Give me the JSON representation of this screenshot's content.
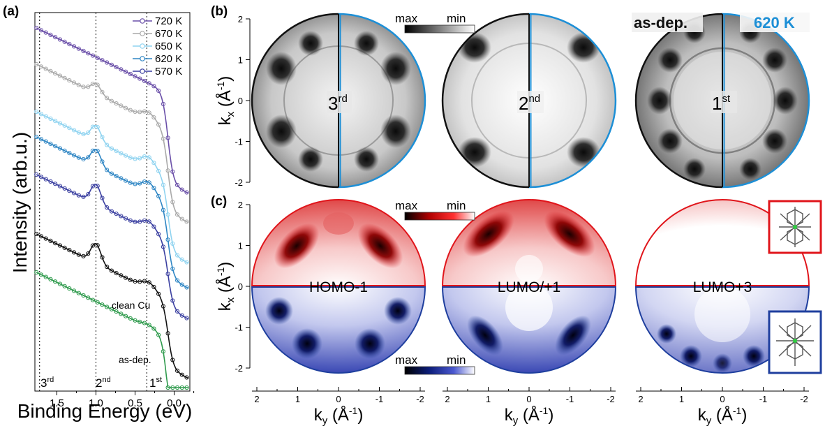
{
  "panels": {
    "a": "(a)",
    "b": "(b)",
    "c": "(c)"
  },
  "panel_a": {
    "ylabel": "Intensity (arb.u.)",
    "xlabel": "Binding Energy (eV)",
    "x_ticks": [
      "1.5",
      "1.0",
      "0.5",
      "0.0"
    ],
    "x_tick_values": [
      1.5,
      1.0,
      0.5,
      0.0
    ],
    "xlim": [
      1.78,
      -0.2
    ],
    "legend": [
      "720 K",
      "670 K",
      "650 K",
      "620 K",
      "570 K"
    ],
    "curve_labels": [
      "as-dep.",
      "clean Cu"
    ],
    "order_labels": [
      {
        "base": "3",
        "sup": "rd"
      },
      {
        "base": "2",
        "sup": "nd"
      },
      {
        "base": "1",
        "sup": "st"
      }
    ],
    "dashed_lines_eV": [
      1.72,
      1.0,
      0.35
    ],
    "series_colors": [
      "#6a4fa8",
      "#a9a9a9",
      "#8fd3f0",
      "#2f86c4",
      "#3a3fa0",
      "#111111",
      "#2e9a4c"
    ]
  },
  "panel_b": {
    "colorbar": {
      "max": "max",
      "min": "min"
    },
    "header_left": "as-dep.",
    "header_right": "620 K",
    "left_color": "#111111",
    "right_color": "#1d8fd6",
    "labels": [
      {
        "base": "3",
        "sup": "rd"
      },
      {
        "base": "2",
        "sup": "nd"
      },
      {
        "base": "1",
        "sup": "st"
      }
    ],
    "ylabel_base": "k",
    "ylabel_sub": "x",
    "ylabel_rest": "(Å",
    "ylabel_sup": "-1",
    "ylabel_close": ")",
    "y_ticks": [
      "2",
      "1",
      "0",
      "-1",
      "-2"
    ]
  },
  "panel_c": {
    "colorbar_red": {
      "max": "max",
      "min": "min"
    },
    "colorbar_blue": {
      "max": "max",
      "min": "min"
    },
    "labels": [
      "HOMO-1",
      "LUMO/+1",
      "LUMO+3"
    ],
    "red_color": "#e0151b",
    "blue_color": "#1f3f9e",
    "y_ticks": [
      "2",
      "1",
      "0",
      "-1",
      "-2"
    ],
    "x_ticks": [
      "2",
      "1",
      "0",
      "-1",
      "-2"
    ],
    "xlabel_base": "k",
    "xlabel_sub": "y",
    "xlabel_rest": "(Å",
    "xlabel_sup": "-1",
    "xlabel_close": ")"
  }
}
